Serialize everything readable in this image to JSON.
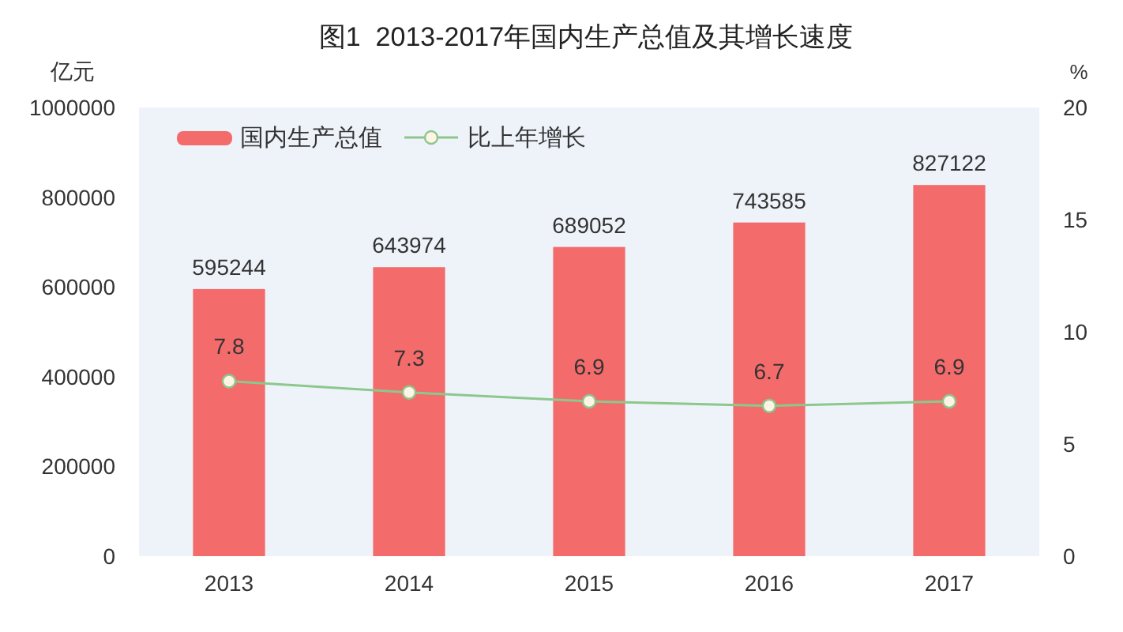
{
  "chart_data": {
    "type": "bar",
    "title": "图1  2013-2017年国内生产总值及其增长速度",
    "ylabel": "亿元",
    "y2label": "%",
    "categories": [
      "2013",
      "2014",
      "2015",
      "2016",
      "2017"
    ],
    "series": [
      {
        "name": "国内生产总值",
        "color": "#f36b6b",
        "values": [
          595244,
          643974,
          689052,
          743585,
          827122
        ]
      },
      {
        "name": "比上年增长",
        "type": "line",
        "axis": "y2",
        "color": "#8cc88c",
        "values": [
          7.8,
          7.3,
          6.9,
          6.7,
          6.9
        ]
      }
    ],
    "ylim": [
      0,
      1000000
    ],
    "yticks": [
      0,
      200000,
      400000,
      600000,
      800000,
      1000000
    ],
    "y2lim": [
      0,
      20
    ],
    "y2ticks": [
      0,
      5,
      10,
      15,
      20
    ],
    "data_labels": true,
    "legend": "top left",
    "marker": "circle"
  }
}
